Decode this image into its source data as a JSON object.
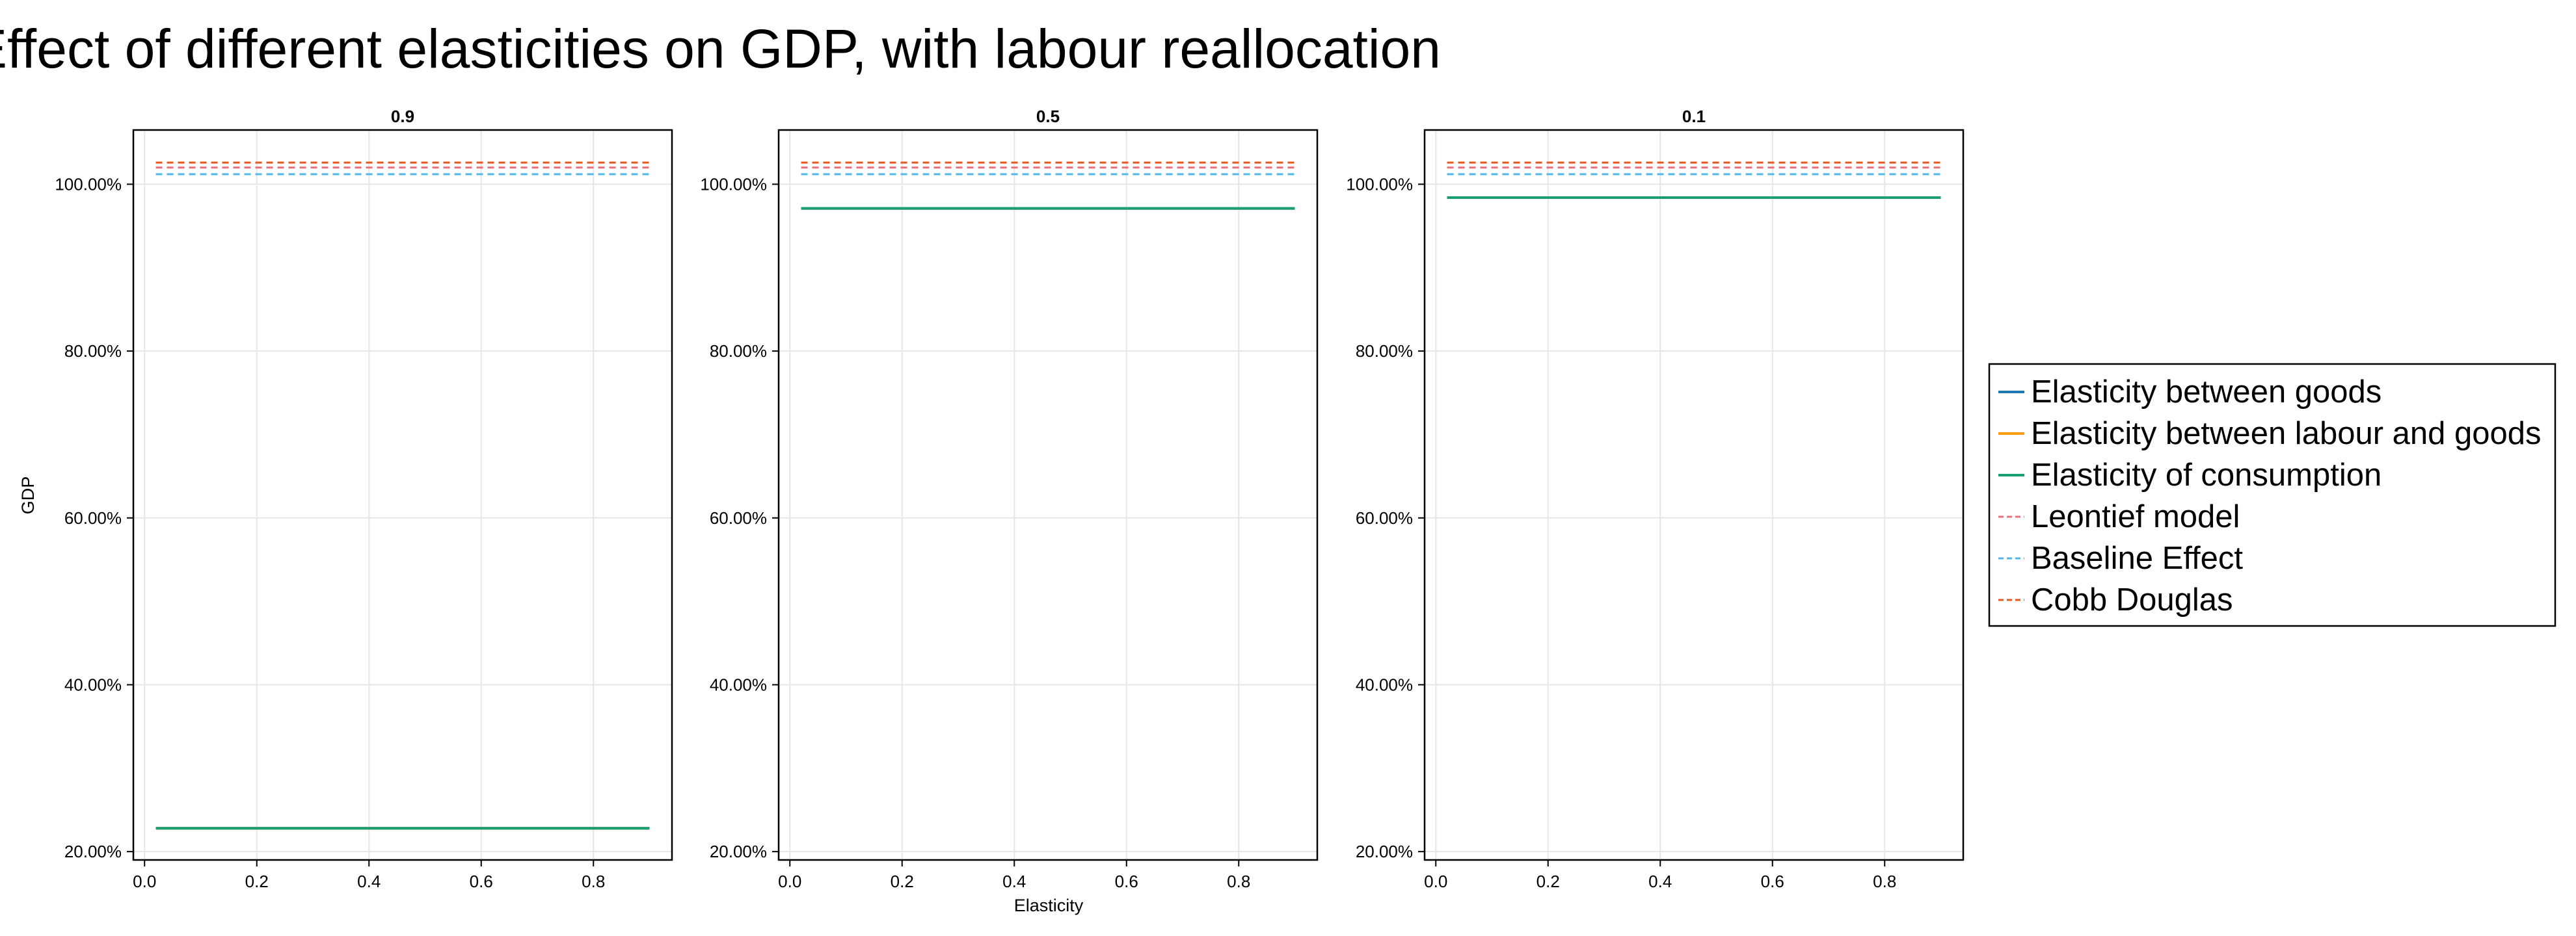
{
  "figure": {
    "title": "Effect of different elasticities on GDP, with labour reallocation",
    "ylabel": "GDP",
    "xlabel": "Elasticity"
  },
  "legend": {
    "placement": "right",
    "entries": [
      {
        "label": "Elasticity between goods",
        "color": "#1f77b4",
        "dash": "solid"
      },
      {
        "label": "Elasticity between labour and goods",
        "color": "#ff9f0f",
        "dash": "solid"
      },
      {
        "label": "Elasticity of consumption",
        "color": "#1a9e73",
        "dash": "solid"
      },
      {
        "label": "Leontief model",
        "color": "#e8707a",
        "dash": "dashed"
      },
      {
        "label": "Baseline Effect",
        "color": "#52b7e5",
        "dash": "dashed"
      },
      {
        "label": "Cobb Douglas",
        "color": "#e8581e",
        "dash": "dashed"
      }
    ]
  },
  "chart_data": [
    {
      "type": "line",
      "title": "0.9",
      "xlabel": "",
      "ylabel": "GDP",
      "xlim": [
        -0.02,
        0.94
      ],
      "ylim": [
        0.19,
        1.065
      ],
      "x_ticks": [
        0.0,
        0.2,
        0.4,
        0.6,
        0.8
      ],
      "x_tick_labels": [
        "0.0",
        "0.2",
        "0.4",
        "0.6",
        "0.8"
      ],
      "y_ticks": [
        0.2,
        0.4,
        0.6,
        0.8,
        1.0
      ],
      "y_tick_labels": [
        "20.00%",
        "40.00%",
        "60.00%",
        "80.00%",
        "100.00%"
      ],
      "grid": true,
      "x": [
        0.02,
        0.9
      ],
      "series": [
        {
          "name": "Elasticity between goods",
          "values": [
            0.228,
            0.228
          ]
        },
        {
          "name": "Elasticity between labour and goods",
          "values": [
            0.228,
            0.228
          ]
        },
        {
          "name": "Elasticity of consumption",
          "values": [
            0.228,
            0.228
          ]
        },
        {
          "name": "Leontief model",
          "values": [
            1.02,
            1.02
          ]
        },
        {
          "name": "Baseline Effect",
          "values": [
            1.012,
            1.012
          ]
        },
        {
          "name": "Cobb Douglas",
          "values": [
            1.026,
            1.026
          ]
        }
      ]
    },
    {
      "type": "line",
      "title": "0.5",
      "xlabel": "Elasticity",
      "ylabel": "",
      "xlim": [
        -0.02,
        0.94
      ],
      "ylim": [
        0.19,
        1.065
      ],
      "x_ticks": [
        0.0,
        0.2,
        0.4,
        0.6,
        0.8
      ],
      "x_tick_labels": [
        "0.0",
        "0.2",
        "0.4",
        "0.6",
        "0.8"
      ],
      "y_ticks": [
        0.2,
        0.4,
        0.6,
        0.8,
        1.0
      ],
      "y_tick_labels": [
        "20.00%",
        "40.00%",
        "60.00%",
        "80.00%",
        "100.00%"
      ],
      "grid": true,
      "x": [
        0.02,
        0.9
      ],
      "series": [
        {
          "name": "Elasticity between goods",
          "values": [
            0.971,
            0.971
          ]
        },
        {
          "name": "Elasticity between labour and goods",
          "values": [
            0.971,
            0.971
          ]
        },
        {
          "name": "Elasticity of consumption",
          "values": [
            0.971,
            0.971
          ]
        },
        {
          "name": "Leontief model",
          "values": [
            1.02,
            1.02
          ]
        },
        {
          "name": "Baseline Effect",
          "values": [
            1.012,
            1.012
          ]
        },
        {
          "name": "Cobb Douglas",
          "values": [
            1.026,
            1.026
          ]
        }
      ]
    },
    {
      "type": "line",
      "title": "0.1",
      "xlabel": "",
      "ylabel": "",
      "xlim": [
        -0.02,
        0.94
      ],
      "ylim": [
        0.19,
        1.065
      ],
      "x_ticks": [
        0.0,
        0.2,
        0.4,
        0.6,
        0.8
      ],
      "x_tick_labels": [
        "0.0",
        "0.2",
        "0.4",
        "0.6",
        "0.8"
      ],
      "y_ticks": [
        0.2,
        0.4,
        0.6,
        0.8,
        1.0
      ],
      "y_tick_labels": [
        "20.00%",
        "40.00%",
        "60.00%",
        "80.00%",
        "100.00%"
      ],
      "grid": true,
      "x": [
        0.02,
        0.9
      ],
      "series": [
        {
          "name": "Elasticity between goods",
          "values": [
            0.984,
            0.984
          ]
        },
        {
          "name": "Elasticity between labour and goods",
          "values": [
            0.984,
            0.984
          ]
        },
        {
          "name": "Elasticity of consumption",
          "values": [
            0.984,
            0.984
          ]
        },
        {
          "name": "Leontief model",
          "values": [
            1.02,
            1.02
          ]
        },
        {
          "name": "Baseline Effect",
          "values": [
            1.012,
            1.012
          ]
        },
        {
          "name": "Cobb Douglas",
          "values": [
            1.026,
            1.026
          ]
        }
      ]
    }
  ]
}
